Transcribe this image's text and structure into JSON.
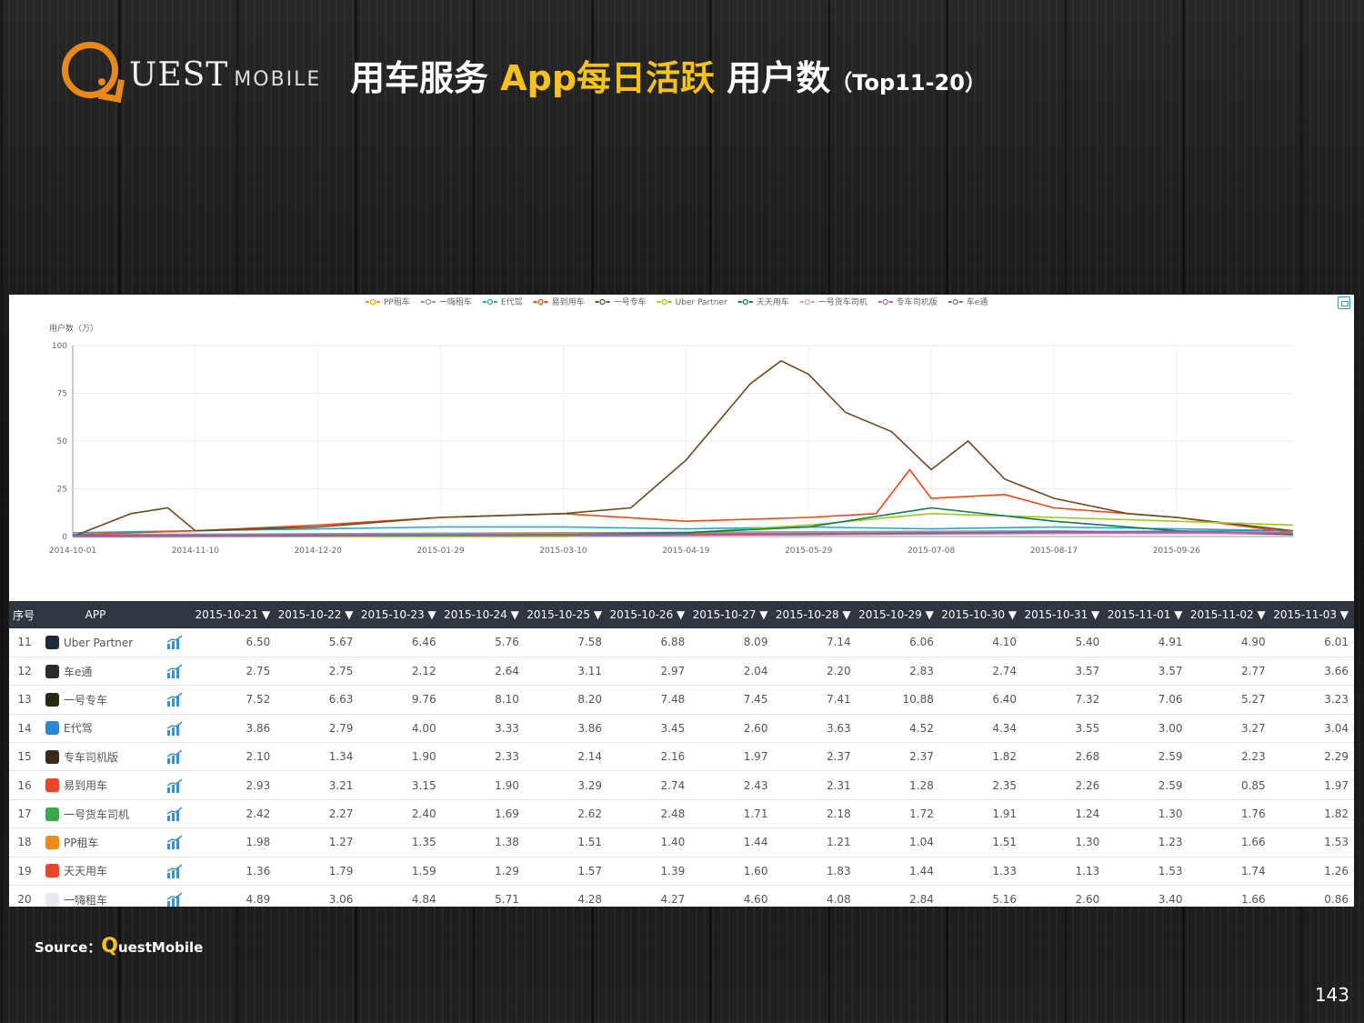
{
  "header": {
    "logo_text": "UEST",
    "logo_sub": "MOBILE",
    "title_main": "用车服务 ",
    "title_accent": "App每日活跃",
    "title_rest": " 用户数",
    "title_sub": "（Top11-20）"
  },
  "colors": {
    "accent": "#f6c21b",
    "logo_orange": "#e88a1a",
    "table_header_bg": "#2e3640"
  },
  "chart_data": {
    "type": "line",
    "title": "",
    "ylabel": "用户数（万）",
    "xlabel": "",
    "ylim": [
      0,
      100
    ],
    "yticks": [
      0,
      25,
      50,
      75,
      100
    ],
    "xlim": [
      "2014-10-01",
      "2015-11-03"
    ],
    "xticks": [
      "2014-10-01",
      "2014-11-10",
      "2014-12-20",
      "2015-01-29",
      "2015-03-10",
      "2015-04-19",
      "2015-05-29",
      "2015-07-08",
      "2015-08-17",
      "2015-09-26"
    ],
    "legend_position": "top-center",
    "grid": true,
    "series": [
      {
        "name": "PP租车",
        "color": "#f0a30a",
        "x": [
          "2014-10-01",
          "2014-12-20",
          "2015-03-10",
          "2015-05-29",
          "2015-08-17",
          "2015-11-03"
        ],
        "values": [
          1,
          1,
          1.5,
          2,
          2,
          1.5
        ]
      },
      {
        "name": "一嗨租车",
        "color": "#999999",
        "x": [
          "2014-10-01",
          "2014-12-20",
          "2015-03-10",
          "2015-05-29",
          "2015-08-17",
          "2015-11-03"
        ],
        "values": [
          1,
          1.5,
          2,
          2.5,
          3,
          1
        ]
      },
      {
        "name": "E代驾",
        "color": "#2aa4c8",
        "x": [
          "2014-10-01",
          "2014-11-10",
          "2014-12-20",
          "2015-01-29",
          "2015-03-10",
          "2015-04-19",
          "2015-05-29",
          "2015-07-08",
          "2015-08-17",
          "2015-09-26",
          "2015-11-03"
        ],
        "values": [
          2,
          3,
          4,
          5,
          5,
          4,
          5,
          4,
          5,
          4,
          3
        ]
      },
      {
        "name": "易到用车",
        "color": "#e64a19",
        "x": [
          "2014-10-01",
          "2014-11-10",
          "2014-12-20",
          "2015-01-29",
          "2015-03-10",
          "2015-04-19",
          "2015-05-29",
          "2015-06-20",
          "2015-07-01",
          "2015-07-08",
          "2015-08-01",
          "2015-08-17",
          "2015-09-26",
          "2015-11-03"
        ],
        "values": [
          1,
          3,
          6,
          10,
          12,
          8,
          10,
          12,
          35,
          20,
          22,
          15,
          10,
          2
        ]
      },
      {
        "name": "一号专车",
        "color": "#6b4a1e",
        "x": [
          "2014-10-01",
          "2014-10-20",
          "2014-11-01",
          "2014-11-10",
          "2014-12-20",
          "2015-01-29",
          "2015-03-10",
          "2015-04-01",
          "2015-04-19",
          "2015-05-10",
          "2015-05-20",
          "2015-05-29",
          "2015-06-10",
          "2015-06-25",
          "2015-07-08",
          "2015-07-20",
          "2015-08-01",
          "2015-08-17",
          "2015-09-10",
          "2015-09-26",
          "2015-11-03"
        ],
        "values": [
          0,
          12,
          15,
          3,
          5,
          10,
          12,
          15,
          40,
          80,
          92,
          85,
          65,
          55,
          35,
          50,
          30,
          20,
          12,
          10,
          3
        ]
      },
      {
        "name": "Uber Partner",
        "color": "#9ac91a",
        "x": [
          "2014-10-01",
          "2015-03-10",
          "2015-04-19",
          "2015-05-29",
          "2015-07-08",
          "2015-08-17",
          "2015-09-26",
          "2015-11-03"
        ],
        "values": [
          0,
          0,
          2,
          6,
          12,
          10,
          8,
          6
        ]
      },
      {
        "name": "天天用车",
        "color": "#0a7a5a",
        "x": [
          "2014-10-01",
          "2015-03-10",
          "2015-04-19",
          "2015-05-29",
          "2015-07-08",
          "2015-08-17",
          "2015-09-26",
          "2015-11-03"
        ],
        "values": [
          0,
          1,
          2,
          5,
          15,
          8,
          3,
          1
        ]
      },
      {
        "name": "一号货车司机",
        "color": "#d8a0a8",
        "x": [
          "2014-10-01",
          "2015-03-10",
          "2015-05-29",
          "2015-08-17",
          "2015-11-03"
        ],
        "values": [
          0,
          0.5,
          1,
          1.5,
          2
        ]
      },
      {
        "name": "专车司机版",
        "color": "#c05aa0",
        "x": [
          "2014-10-01",
          "2015-03-10",
          "2015-05-29",
          "2015-08-17",
          "2015-11-03"
        ],
        "values": [
          0,
          0.5,
          1,
          2,
          2
        ]
      },
      {
        "name": "车e通",
        "color": "#7a6aa8",
        "x": [
          "2014-10-01",
          "2015-03-10",
          "2015-05-29",
          "2015-08-17",
          "2015-11-03"
        ],
        "values": [
          0.5,
          1,
          1.5,
          2.5,
          3
        ]
      }
    ]
  },
  "table": {
    "col_no": "序号",
    "col_app": "APP",
    "dates": [
      "2015-10-21",
      "2015-10-22",
      "2015-10-23",
      "2015-10-24",
      "2015-10-25",
      "2015-10-26",
      "2015-10-27",
      "2015-10-28",
      "2015-10-29",
      "2015-10-30",
      "2015-10-31",
      "2015-11-01",
      "2015-11-02",
      "2015-11-03"
    ],
    "sort_glyph": "▼",
    "rows": [
      {
        "no": "11",
        "app": "Uber Partner",
        "icon_color": "#1d2a3a",
        "icon_name": "uber-partner-app-icon",
        "values": [
          "6.50",
          "5.67",
          "6.46",
          "5.76",
          "7.58",
          "6.88",
          "8.09",
          "7.14",
          "6.06",
          "4.10",
          "5.40",
          "4.91",
          "4.90",
          "6.01"
        ]
      },
      {
        "no": "12",
        "app": "车e通",
        "icon_color": "#2b2b2b",
        "icon_name": "che-e-tong-app-icon",
        "values": [
          "2.75",
          "2.75",
          "2.12",
          "2.64",
          "3.11",
          "2.97",
          "2.04",
          "2.20",
          "2.83",
          "2.74",
          "3.57",
          "3.57",
          "2.77",
          "3.66"
        ]
      },
      {
        "no": "13",
        "app": "一号专车",
        "icon_color": "#2a2a10",
        "icon_name": "yihao-zhuanche-app-icon",
        "values": [
          "7.52",
          "6.63",
          "9.76",
          "8.10",
          "8.20",
          "7.48",
          "7.45",
          "7.41",
          "10.88",
          "6.40",
          "7.32",
          "7.06",
          "5.27",
          "3.23"
        ]
      },
      {
        "no": "14",
        "app": "E代驾",
        "icon_color": "#2a8ad0",
        "icon_name": "e-daijia-app-icon",
        "values": [
          "3.86",
          "2.79",
          "4.00",
          "3.33",
          "3.86",
          "3.45",
          "2.60",
          "3.63",
          "4.52",
          "4.34",
          "3.55",
          "3.00",
          "3.27",
          "3.04"
        ]
      },
      {
        "no": "15",
        "app": "专车司机版",
        "icon_color": "#3a2a1a",
        "icon_name": "zhuanche-driver-app-icon",
        "values": [
          "2.10",
          "1.34",
          "1.90",
          "2.33",
          "2.14",
          "2.16",
          "1.97",
          "2.37",
          "2.37",
          "1.82",
          "2.68",
          "2.59",
          "2.23",
          "2.29"
        ]
      },
      {
        "no": "16",
        "app": "易到用车",
        "icon_color": "#e8452a",
        "icon_name": "yidao-app-icon",
        "values": [
          "2.93",
          "3.21",
          "3.15",
          "1.90",
          "3.29",
          "2.74",
          "2.43",
          "2.31",
          "1.28",
          "2.35",
          "2.26",
          "2.59",
          "0.85",
          "1.97"
        ]
      },
      {
        "no": "17",
        "app": "一号货车司机",
        "icon_color": "#3aa84a",
        "icon_name": "yihao-truck-driver-app-icon",
        "values": [
          "2.42",
          "2.27",
          "2.40",
          "1.69",
          "2.62",
          "2.48",
          "1.71",
          "2.18",
          "1.72",
          "1.91",
          "1.24",
          "1.30",
          "1.76",
          "1.82"
        ]
      },
      {
        "no": "18",
        "app": "PP租车",
        "icon_color": "#f08a1a",
        "icon_name": "pp-zuche-app-icon",
        "values": [
          "1.98",
          "1.27",
          "1.35",
          "1.38",
          "1.51",
          "1.40",
          "1.44",
          "1.21",
          "1.04",
          "1.51",
          "1.30",
          "1.23",
          "1.66",
          "1.53"
        ]
      },
      {
        "no": "19",
        "app": "天天用车",
        "icon_color": "#e8452a",
        "icon_name": "tiantian-app-icon",
        "values": [
          "1.36",
          "1.79",
          "1.59",
          "1.29",
          "1.57",
          "1.39",
          "1.60",
          "1.83",
          "1.44",
          "1.33",
          "1.13",
          "1.53",
          "1.74",
          "1.26"
        ]
      },
      {
        "no": "20",
        "app": "一嗨租车",
        "icon_color": "#e8e8f0",
        "icon_name": "yihi-zuche-app-icon",
        "values": [
          "4.89",
          "3.06",
          "4.84",
          "5.71",
          "4.28",
          "4.27",
          "4.60",
          "4.08",
          "2.84",
          "5.16",
          "2.60",
          "3.40",
          "1.66",
          "0.86"
        ]
      }
    ]
  },
  "footer": {
    "source_label": "Source：",
    "source_q": "Q",
    "source_rest": "uestMobile",
    "page_number": "143"
  }
}
